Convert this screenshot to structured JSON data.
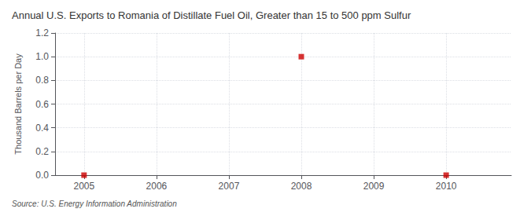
{
  "chart_data": {
    "type": "scatter",
    "title": "Annual U.S. Exports to Romania of Distillate Fuel Oil, Greater than 15 to 500 ppm Sulfur",
    "ylabel": "Thousand Barrels per Day",
    "source": "Source: U.S. Energy Information Administration",
    "x": [
      2005,
      2008,
      2010
    ],
    "values": [
      0.0,
      1.0,
      0.0
    ],
    "color": "#cc0000",
    "marker": "square",
    "xlim": [
      2004.6,
      2010.9
    ],
    "xticks": [
      2005,
      2006,
      2007,
      2008,
      2009,
      2010
    ],
    "ylim": [
      0.0,
      1.2
    ],
    "yticks": [
      {
        "value": 0,
        "label": "0.0"
      },
      0.2,
      0.4,
      0.6,
      0.8,
      {
        "value": 1,
        "label": "1.0"
      },
      1.2
    ],
    "grid": true
  }
}
